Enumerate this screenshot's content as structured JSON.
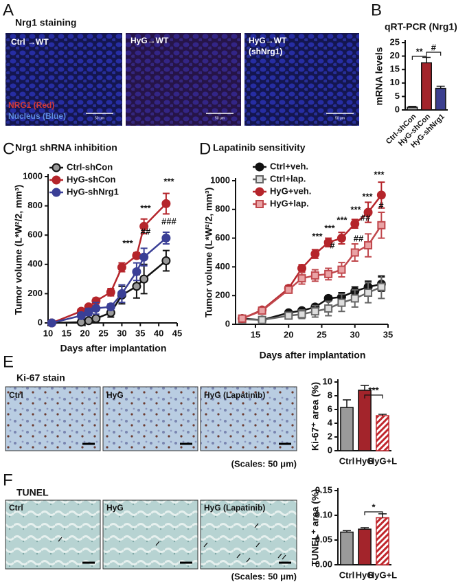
{
  "panel_labels": [
    "A",
    "B",
    "C",
    "D",
    "E",
    "F"
  ],
  "panel_a": {
    "title": "Nrg1 staining",
    "images": [
      [
        "Ctrl →WT"
      ],
      [
        "HyG→WT"
      ],
      [
        "HyG→WT",
        "(shNrg1)"
      ]
    ],
    "legend": [
      "NRG1 (Red)",
      "Nucleus (Blue)"
    ],
    "scale_bar": "50 μm"
  },
  "panel_e": {
    "title": "Ki-67 stain",
    "images": [
      "Ctrl",
      "HyG",
      "HyG (Lapatinib)"
    ],
    "scale_note": "(Scales: 50 μm)"
  },
  "panel_f": {
    "title": "TUNEL",
    "images": [
      "Ctrl",
      "HyG",
      "HyG (Lapatinib)"
    ],
    "scale_note": "(Scales: 50 μm)"
  },
  "chart_data": [
    {
      "type": "bar",
      "title": "qRT-PCR (Nrg1)",
      "ylabel": "mRNA levels",
      "categories": [
        "Ctrl-shCon",
        "HyG-shCon",
        "HyG-shNrg1"
      ],
      "values": [
        1,
        17.5,
        8
      ],
      "errors": [
        0.3,
        2,
        0.8
      ],
      "colors": [
        "#9a9a9a",
        "#a3242b",
        "#3b3f8f"
      ],
      "hatched": [
        false,
        false,
        false
      ],
      "ylim": [
        0,
        25
      ],
      "yticks": [
        0,
        5,
        10,
        15,
        20,
        25
      ],
      "annotations": [
        "**",
        "#"
      ]
    },
    {
      "type": "line",
      "title": "Nrg1 shRNA inhibition",
      "xlabel": "Days after implantation",
      "ylabel": "Tumor volume (L*W²/2, mm³)",
      "x": [
        11,
        19,
        21,
        23,
        27,
        30,
        34,
        36,
        42
      ],
      "xlim": [
        10,
        45
      ],
      "xticks": [
        10,
        15,
        20,
        25,
        30,
        35,
        40,
        45
      ],
      "ylim": [
        0,
        1000
      ],
      "yticks": [
        0,
        200,
        400,
        600,
        800,
        1000
      ],
      "series": [
        {
          "name": "Ctrl-shCon",
          "color": "#111111",
          "fill": "#9a9a9a",
          "marker": "circle",
          "values": [
            0,
            5,
            15,
            30,
            70,
            190,
            250,
            300,
            425
          ],
          "errors": [
            0,
            5,
            10,
            15,
            30,
            60,
            80,
            100,
            70
          ]
        },
        {
          "name": "HyG-shCon",
          "color": "#b5252b",
          "fill": "#b5252b",
          "marker": "circle",
          "values": [
            0,
            80,
            110,
            150,
            210,
            380,
            460,
            660,
            815
          ],
          "errors": [
            0,
            15,
            15,
            20,
            25,
            30,
            20,
            50,
            70
          ]
        },
        {
          "name": "HyG-shNrg1",
          "color": "#3a3f96",
          "fill": "#3a3f96",
          "marker": "circle",
          "values": [
            0,
            50,
            75,
            100,
            110,
            200,
            350,
            450,
            580
          ],
          "errors": [
            0,
            20,
            25,
            40,
            20,
            60,
            60,
            60,
            40
          ]
        }
      ],
      "annotations": [
        "***",
        "***",
        "##",
        "***",
        "###"
      ]
    },
    {
      "type": "line",
      "title": "Lapatinib sensitivity",
      "xlabel": "Days after implantation",
      "ylabel": "Tumor volume (L*W²/2, mm³)",
      "x": [
        13,
        16,
        20,
        22,
        24,
        26,
        28,
        30,
        32,
        34
      ],
      "xlim": [
        12,
        35
      ],
      "xticks": [
        15,
        20,
        25,
        30,
        35
      ],
      "ylim": [
        0,
        1000
      ],
      "yticks": [
        0,
        200,
        400,
        600,
        800,
        1000
      ],
      "series": [
        {
          "name": "Ctrl+veh.",
          "color": "#111111",
          "fill": "#111111",
          "marker": "circle",
          "values": [
            40,
            30,
            80,
            95,
            120,
            180,
            190,
            230,
            260,
            280
          ],
          "errors": [
            5,
            5,
            15,
            15,
            20,
            20,
            30,
            30,
            40,
            50
          ]
        },
        {
          "name": "Ctrl+lap.",
          "color": "#666666",
          "fill": "#dddddd",
          "marker": "square",
          "values": [
            35,
            30,
            60,
            70,
            90,
            110,
            150,
            180,
            220,
            260
          ],
          "errors": [
            5,
            5,
            20,
            30,
            40,
            50,
            60,
            60,
            70,
            80
          ]
        },
        {
          "name": "HyG+veh.",
          "color": "#b5252b",
          "fill": "#b5252b",
          "marker": "circle",
          "values": [
            40,
            100,
            250,
            390,
            490,
            570,
            600,
            700,
            780,
            900
          ],
          "errors": [
            5,
            10,
            20,
            25,
            30,
            30,
            40,
            30,
            70,
            90
          ]
        },
        {
          "name": "HyG+lap.",
          "color": "#c0474c",
          "fill": "#e9a3a5",
          "marker": "square",
          "values": [
            40,
            95,
            240,
            320,
            340,
            350,
            380,
            500,
            550,
            690
          ],
          "errors": [
            5,
            10,
            20,
            40,
            40,
            40,
            50,
            60,
            80,
            90
          ]
        }
      ],
      "annotations": [
        "***",
        "***",
        "***",
        "#",
        "***",
        "##",
        "***",
        "##",
        "***",
        "#"
      ]
    },
    {
      "type": "bar",
      "ylabel": "Ki-67⁺ area (%)",
      "categories": [
        "Ctrl",
        "HyG",
        "HyG+L"
      ],
      "values": [
        6.3,
        8.8,
        5.1
      ],
      "errors": [
        1.1,
        0.7,
        0.2
      ],
      "colors": [
        "#9a9a9a",
        "#a3242b",
        "#c0272d"
      ],
      "hatched": [
        false,
        false,
        true
      ],
      "ylim": [
        0,
        10
      ],
      "yticks": [
        0,
        2,
        4,
        6,
        8,
        10
      ],
      "annotations": [
        "***"
      ]
    },
    {
      "type": "bar",
      "ylabel": "TUNEL⁺ area (%)",
      "categories": [
        "Ctrl",
        "HyG",
        "HyG+L"
      ],
      "values": [
        0.066,
        0.072,
        0.095
      ],
      "errors": [
        0.003,
        0.003,
        0.008
      ],
      "colors": [
        "#9a9a9a",
        "#a3242b",
        "#c0272d"
      ],
      "hatched": [
        false,
        false,
        true
      ],
      "ylim": [
        0,
        0.15
      ],
      "yticks": [
        {
          "value": 0,
          "label": "0.00"
        },
        0.05,
        {
          "value": 0.1,
          "label": "0.10"
        },
        0.15
      ],
      "annotations": [
        "*"
      ]
    }
  ]
}
